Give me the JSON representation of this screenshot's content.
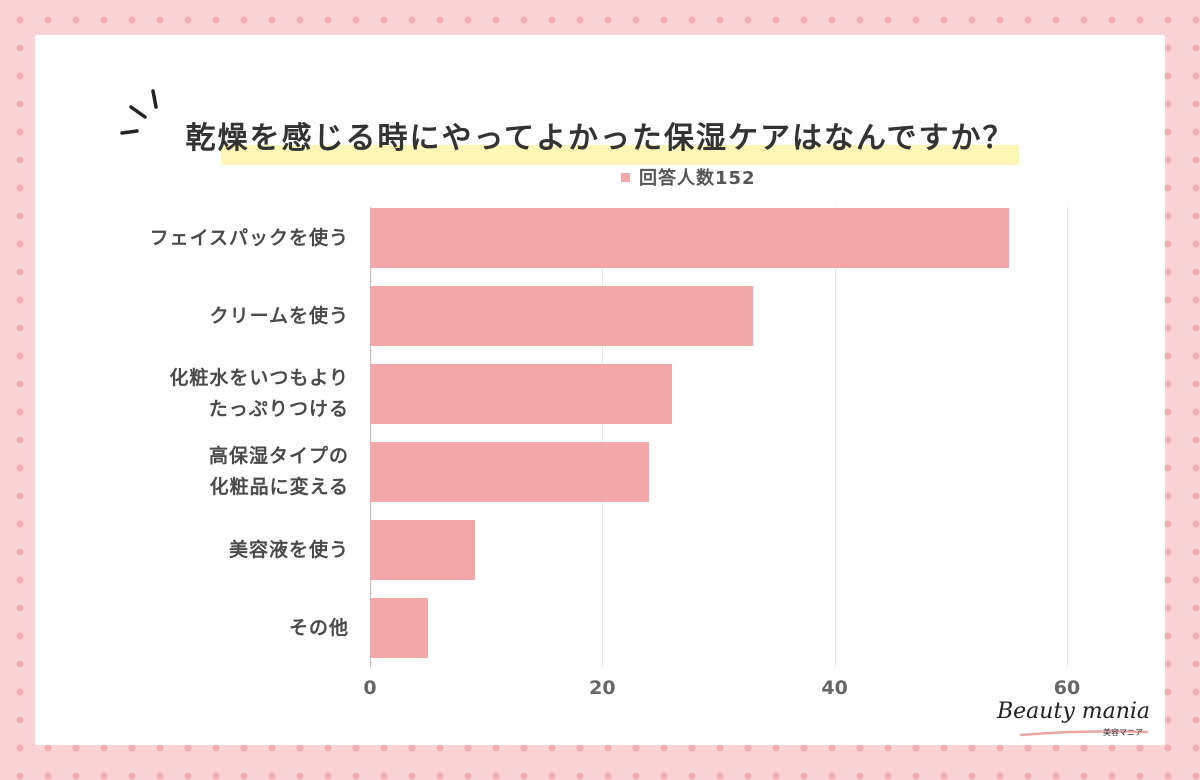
{
  "chart_data": {
    "type": "bar",
    "orientation": "horizontal",
    "title": "乾燥を感じる時にやってよかった保湿ケアはなんですか？",
    "categories": [
      [
        "フェイスパックを使う"
      ],
      [
        "クリームを使う"
      ],
      [
        "化粧水をいつもより",
        "たっぷりつける"
      ],
      [
        "高保湿タイプの",
        "化粧品に変える"
      ],
      [
        "美容液を使う"
      ],
      [
        "その他"
      ]
    ],
    "series": [
      {
        "name": "回答人数152",
        "values": [
          55,
          33,
          26,
          24,
          9,
          5
        ]
      }
    ],
    "xlim": [
      0,
      60
    ],
    "xticks": [
      "0",
      "20",
      "40",
      "60"
    ],
    "grid": true,
    "legend": "top-center",
    "colors": {
      "bar": "#f2a8a9",
      "background": "#f9d2d3",
      "dots": "#f2aeb0",
      "highlight": "#fdf6b4"
    }
  },
  "branding": {
    "logo_text": "Beauty mania",
    "logo_sub": "美容マニア"
  }
}
